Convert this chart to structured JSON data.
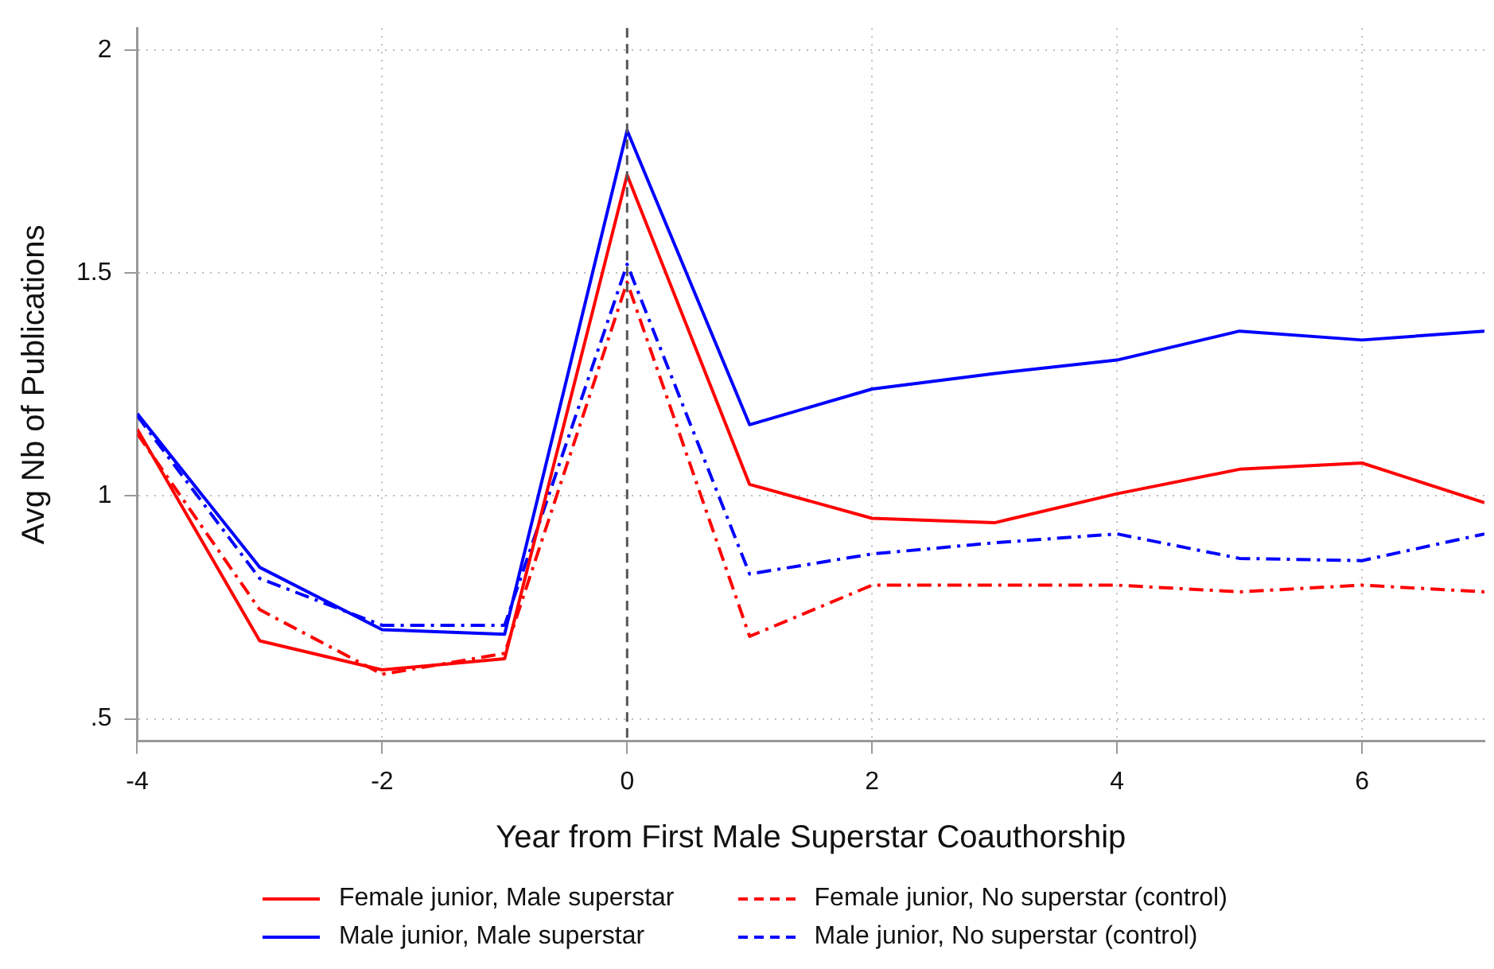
{
  "chart_data": {
    "type": "line",
    "xlabel": "Year from First Male Superstar Coauthorship",
    "ylabel": "Avg Nb of Publications",
    "x": [
      -4,
      -3,
      -2,
      -1,
      0,
      1,
      2,
      3,
      4,
      5,
      6,
      7
    ],
    "series": [
      {
        "name": "Female junior, Male superstar",
        "color": "#ff0000",
        "line_style": "solid",
        "values": [
          1.15,
          0.675,
          0.61,
          0.635,
          1.72,
          1.026,
          0.95,
          0.94,
          1.005,
          1.06,
          1.074,
          0.985
        ]
      },
      {
        "name": "Male junior, Male superstar",
        "color": "#0000ff",
        "line_style": "solid",
        "values": [
          1.185,
          0.84,
          0.7,
          0.69,
          1.82,
          1.16,
          1.24,
          1.275,
          1.305,
          1.37,
          1.35,
          1.37
        ]
      },
      {
        "name": "Female junior, No superstar (control)",
        "color": "#ff0000",
        "line_style": "dashed",
        "values": [
          1.14,
          0.745,
          0.6,
          0.647,
          1.48,
          0.685,
          0.8,
          0.8,
          0.8,
          0.785,
          0.8,
          0.785
        ]
      },
      {
        "name": "Male junior, No superstar (control)",
        "color": "#0000ff",
        "line_style": "dashed",
        "values": [
          1.18,
          0.815,
          0.71,
          0.71,
          1.52,
          0.825,
          0.87,
          0.895,
          0.915,
          0.86,
          0.855,
          0.915
        ]
      }
    ],
    "xlim": [
      -4,
      7
    ],
    "xticks": [
      -4,
      -2,
      0,
      2,
      4,
      6
    ],
    "ylim": [
      0.45,
      2.05
    ],
    "yticks": [
      {
        "value": 0.5,
        "label": ".5"
      },
      1,
      1.5,
      2
    ],
    "ref_lines": [
      {
        "axis": "x",
        "value": 0,
        "color": "#555555",
        "line_style": "dashed"
      }
    ],
    "grid": true,
    "legend": "bottom",
    "marker": "none"
  }
}
